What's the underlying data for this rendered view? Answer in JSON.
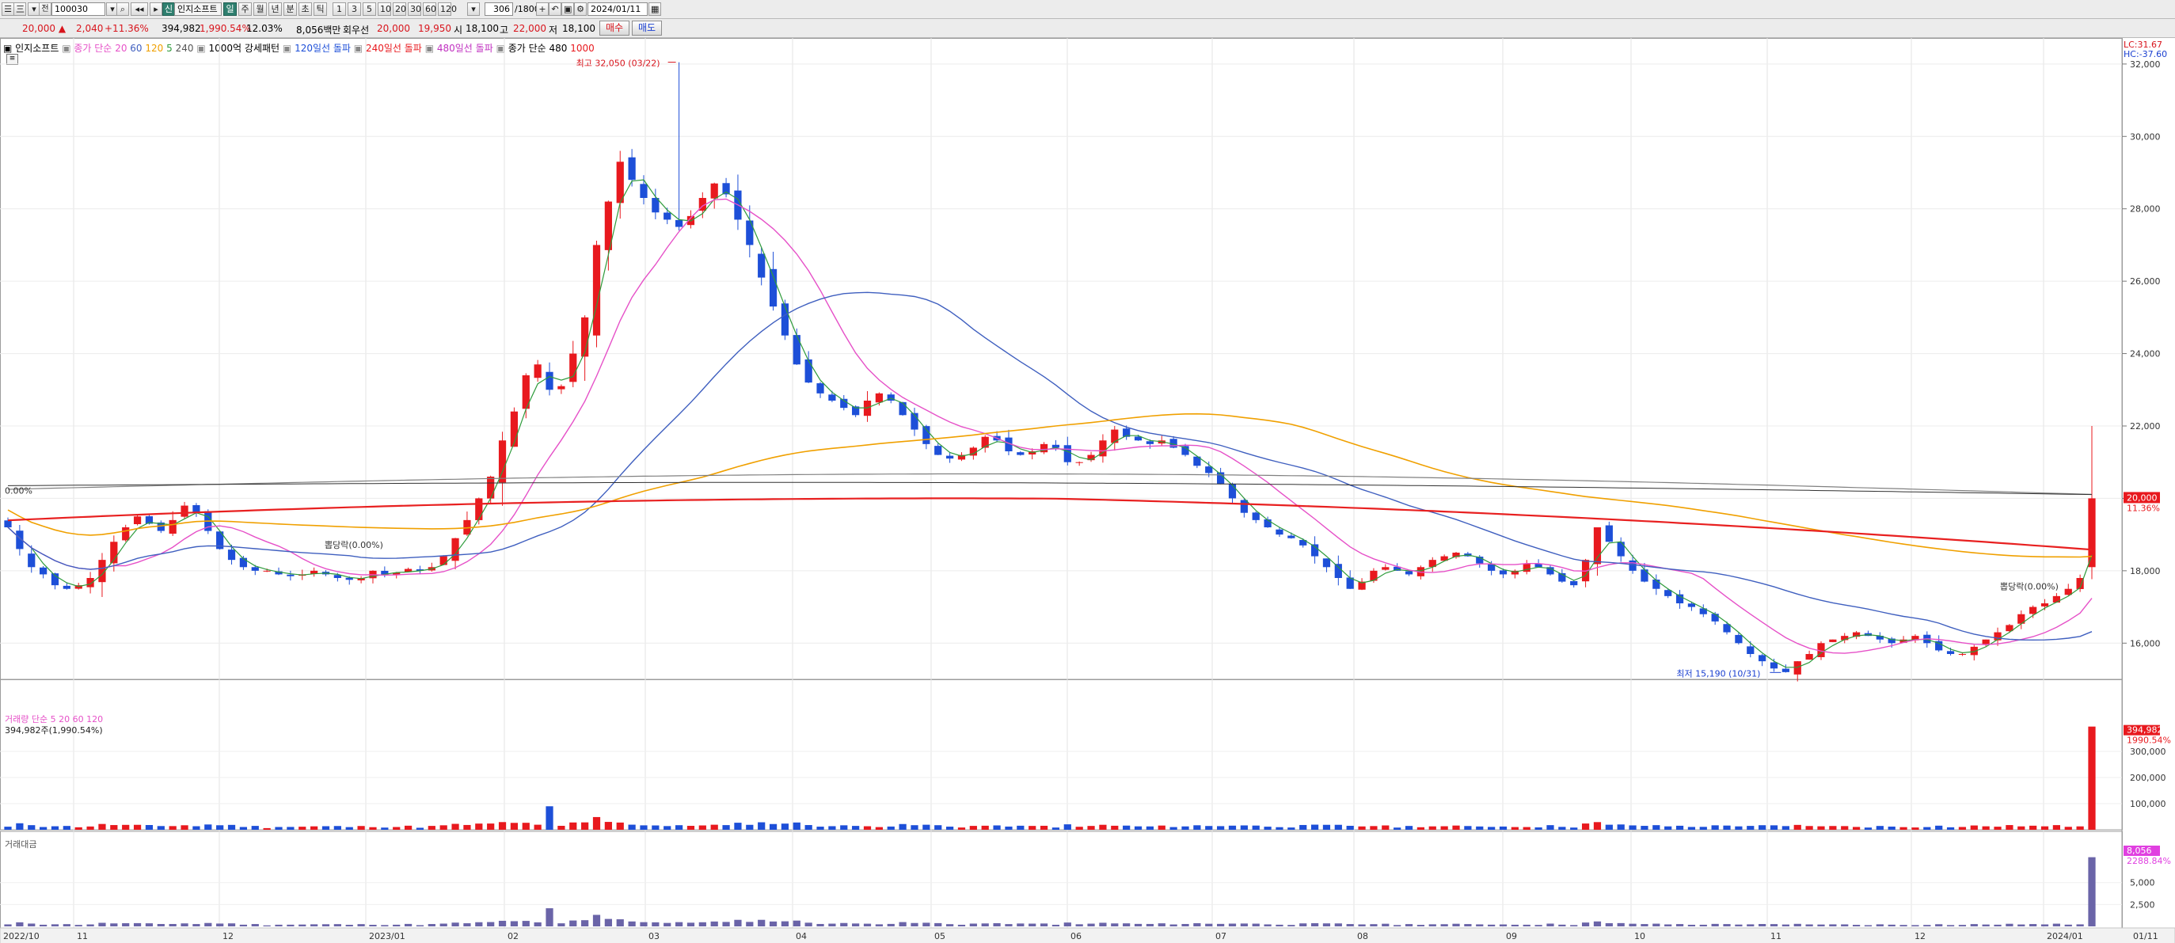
{
  "toolbar": {
    "code": "100030",
    "name": "인지소프트",
    "credit_badge": "신",
    "period_tabs": [
      "일",
      "주",
      "월",
      "년",
      "분",
      "초",
      "틱"
    ],
    "active_period": 0,
    "minute_options": [
      "1",
      "3",
      "5",
      "10",
      "20",
      "30",
      "60",
      "120"
    ],
    "count": "306",
    "count_total": "/1800",
    "date": "2024/01/11"
  },
  "quote": {
    "price": "20,000",
    "change": "2,040",
    "change_pct": "+11.36%",
    "volume": "394,982",
    "volume_ratio": "1,990.54%",
    "turnover": "12.03%",
    "amount": "8,056백만",
    "prev_label": "회우선",
    "prev_value": "20,000",
    "ask": "19,950",
    "open_label": "시",
    "open": "18,100",
    "high_label": "고",
    "high": "22,000",
    "low_label": "저",
    "low": "18,100",
    "buy_label": "매수",
    "sell_label": "매도"
  },
  "legend": {
    "stock": "인지소프트",
    "ma_label": "종가 단순",
    "ma_periods": [
      "20",
      "60",
      "120",
      "5",
      "240"
    ],
    "pattern1": "1000억 강세패턴",
    "pattern2": "120일선 돌파",
    "pattern3": "240일선 돌파",
    "pattern4": "480일선 돌파",
    "ma2_label": "종가 단순 480",
    "ma2_extra": "1000",
    "lc": "LC:31.67",
    "hc": "HC:-37.60"
  },
  "annotations": {
    "high": "최고 32,050 (03/22)",
    "low": "최저 15,190 (10/31)",
    "pct1": "0.00%",
    "fall1": "뽑당락(0.00%)",
    "fall2": "뽑당락(0.00%)"
  },
  "price_panel": {
    "y_ticks": [
      "32,000",
      "30,000",
      "28,000",
      "26,000",
      "24,000",
      "22,000",
      "20,000",
      "18,000",
      "16,000"
    ],
    "current_price": "20,000",
    "current_pct": "11.36%"
  },
  "volume_panel": {
    "title": "거래량",
    "ma_label": "단순",
    "ma_periods": [
      "5",
      "20",
      "60",
      "120"
    ],
    "value_text": "394,982주(1,990.54%)",
    "y_ticks": [
      "300,000",
      "200,000",
      "100,000"
    ],
    "current": "394,982",
    "current_pct": "1990.54%"
  },
  "amount_panel": {
    "title": "거래대금",
    "y_ticks": [
      "5,000",
      "2,500"
    ],
    "current": "8,056",
    "current_pct": "2288.84%"
  },
  "x_axis": [
    "2022/10",
    "11",
    "12",
    "2023/01",
    "02",
    "03",
    "04",
    "05",
    "06",
    "07",
    "08",
    "09",
    "10",
    "11",
    "12",
    "2024/01",
    "01/11"
  ],
  "colors": {
    "up": "#e8191e",
    "down": "#1d4fd8",
    "ma5": "#2e9b3b",
    "ma20": "#e651c8",
    "ma60": "#3f5fbf",
    "ma120": "#f0a000",
    "ma240": "#e82020",
    "ma480": "#808080"
  },
  "chart_data": {
    "type": "candlestick",
    "price_range": [
      15000,
      32500
    ],
    "closes": [
      19200,
      18600,
      18100,
      17900,
      17600,
      17500,
      17600,
      17800,
      18300,
      18800,
      19200,
      19500,
      19300,
      19100,
      19400,
      19800,
      19600,
      19100,
      18600,
      18300,
      18100,
      18000,
      18000,
      17900,
      17850,
      17900,
      18000,
      17900,
      17800,
      17750,
      17800,
      18000,
      17900,
      17950,
      18050,
      18000,
      18100,
      18400,
      18900,
      19400,
      20000,
      20600,
      21600,
      22400,
      23400,
      23700,
      23000,
      23100,
      24000,
      25000,
      27000,
      28200,
      29300,
      28800,
      28300,
      27900,
      27700,
      27500,
      27800,
      28300,
      28700,
      28400,
      27700,
      27000,
      26100,
      25300,
      24500,
      23700,
      23200,
      22900,
      22700,
      22500,
      22300,
      22700,
      22900,
      22700,
      22300,
      21900,
      21500,
      21200,
      21100,
      21200,
      21400,
      21700,
      21600,
      21300,
      21200,
      21300,
      21500,
      21400,
      21000,
      21000,
      21200,
      21600,
      21900,
      21700,
      21600,
      21500,
      21600,
      21400,
      21200,
      20900,
      20700,
      20400,
      20000,
      19600,
      19400,
      19200,
      19000,
      18900,
      18700,
      18400,
      18100,
      17800,
      17500,
      17700,
      18000,
      18100,
      18000,
      17900,
      18100,
      18300,
      18400,
      18500,
      18400,
      18200,
      18000,
      17900,
      18000,
      18200,
      18100,
      17900,
      17700,
      17600,
      18300,
      19200,
      18800,
      18400,
      18000,
      17700,
      17500,
      17300,
      17100,
      17000,
      16800,
      16600,
      16300,
      16000,
      15700,
      15500,
      15300,
      15200,
      15500,
      15700,
      16000,
      16100,
      16200,
      16300,
      16200,
      16100,
      16000,
      16100,
      16200,
      16000,
      15800,
      15700,
      15700,
      15900,
      16100,
      16300,
      16500,
      16800,
      17000,
      17100,
      17300,
      17500,
      17800,
      20000
    ],
    "volume_max": 400000,
    "amount_max": 8500
  }
}
